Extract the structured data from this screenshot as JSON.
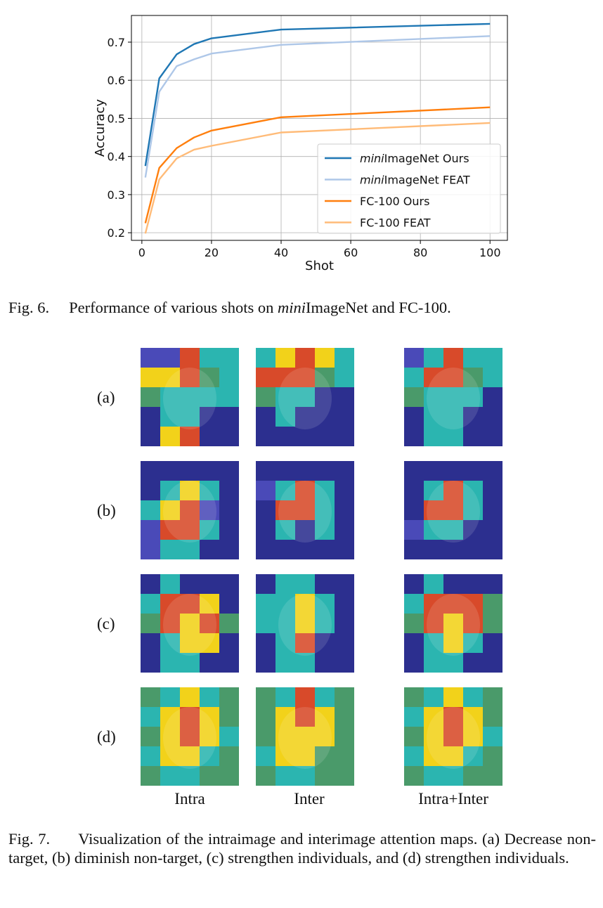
{
  "chart_data": {
    "type": "line",
    "xlabel": "Shot",
    "ylabel": "Accuracy",
    "xlim": [
      -3,
      105
    ],
    "ylim": [
      0.18,
      0.77
    ],
    "xticks": [
      0,
      20,
      40,
      60,
      80,
      100
    ],
    "yticks": [
      0.2,
      0.3,
      0.4,
      0.5,
      0.6,
      0.7
    ],
    "ytick_labels": [
      "0.2",
      "0.3",
      "0.4",
      "0.5",
      "0.6",
      "0.7"
    ],
    "grid": true,
    "legend_position": "bottom-right",
    "series": [
      {
        "name_italic": "mini",
        "name_rest": "ImageNet Ours",
        "color": "#1f77b4",
        "x": [
          1,
          5,
          10,
          15,
          20,
          40,
          100
        ],
        "y": [
          0.375,
          0.605,
          0.668,
          0.695,
          0.71,
          0.733,
          0.748
        ]
      },
      {
        "name_italic": "mini",
        "name_rest": "ImageNet FEAT",
        "color": "#aec7e8",
        "x": [
          1,
          5,
          10,
          15,
          20,
          40,
          100
        ],
        "y": [
          0.345,
          0.57,
          0.637,
          0.655,
          0.67,
          0.693,
          0.716
        ]
      },
      {
        "name_italic": "",
        "name_rest": "FC-100 Ours",
        "color": "#ff7f0e",
        "x": [
          1,
          5,
          10,
          15,
          20,
          40,
          100
        ],
        "y": [
          0.225,
          0.37,
          0.422,
          0.45,
          0.468,
          0.503,
          0.529
        ]
      },
      {
        "name_italic": "",
        "name_rest": "FC-100 FEAT",
        "color": "#ffbb78",
        "x": [
          1,
          5,
          10,
          15,
          20,
          40,
          100
        ],
        "y": [
          0.198,
          0.34,
          0.395,
          0.418,
          0.428,
          0.463,
          0.488
        ]
      }
    ]
  },
  "fig6": {
    "label": "Fig. 6.",
    "text_before": "Performance of various shots on ",
    "text_italic": "mini",
    "text_after": "ImageNet and FC-100."
  },
  "fig7": {
    "label": "Fig. 7.",
    "text": "Visualization of the intraimage and interimage attention maps. (a) Decrease non-target, (b) diminish non-target, (c) strengthen individuals, and (d) strengthen individuals."
  },
  "grid": {
    "rows": [
      "(a)",
      "(b)",
      "(c)",
      "(d)"
    ],
    "columns": [
      "Intra",
      "Inter",
      "Intra+Inter"
    ]
  },
  "colors": {
    "jet_low": "#2c2f8f",
    "jet_mid": "#2bb5b0",
    "jet_high": "#f2d21a",
    "jet_peak": "#d84a2a"
  }
}
